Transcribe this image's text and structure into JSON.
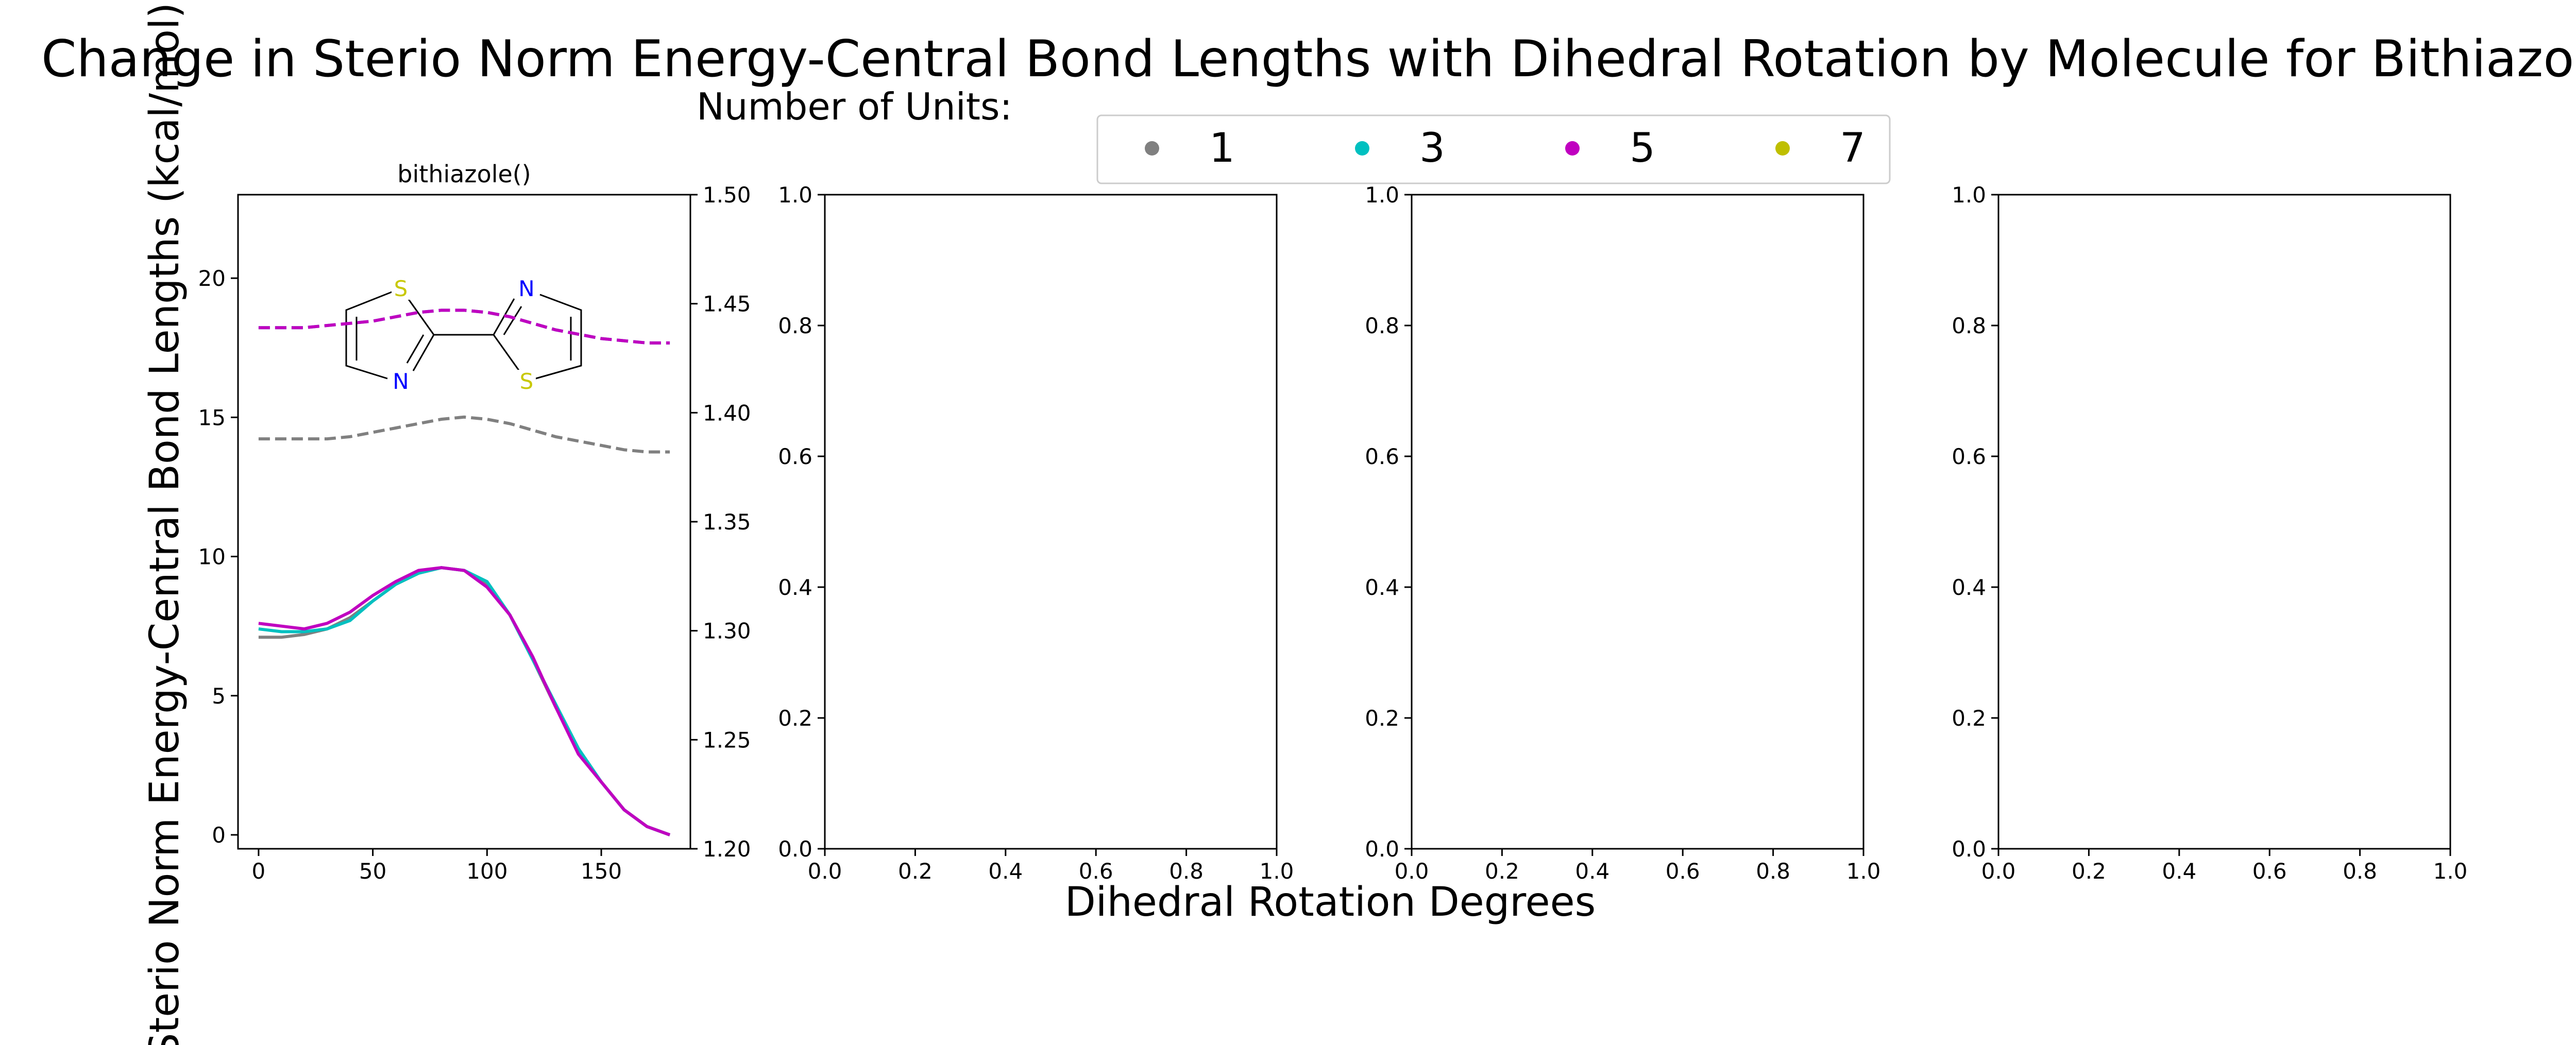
{
  "chart_data": {
    "type": "line",
    "title": "Change in Sterio Norm Energy-Central Bond Lengths with Dihedral Rotation by Molecule for Bithiazole",
    "xlabel": "Dihedral Rotation Degrees",
    "ylabel": "Sterio Norm Energy-Central Bond Lengths (kcal/mol)",
    "legend": {
      "title": "Number of Units:",
      "placement": "top-center",
      "entries": [
        {
          "label": "1",
          "color": "#808080"
        },
        {
          "label": "3",
          "color": "#00c0c0"
        },
        {
          "label": "5",
          "color": "#c000c0"
        },
        {
          "label": "7",
          "color": "#bfbf00"
        }
      ]
    },
    "panels": [
      {
        "title": "bithiazole()",
        "xlim": [
          -9,
          189
        ],
        "xticks": [
          "0",
          "50",
          "100",
          "150"
        ],
        "ylim": [
          -0.5,
          23
        ],
        "yticks": [
          "0",
          "5",
          "10",
          "15",
          "20"
        ],
        "y2lim": [
          1.2,
          1.5
        ],
        "y2ticks": [
          "1.20",
          "1.25",
          "1.30",
          "1.35",
          "1.40",
          "1.45",
          "1.50"
        ],
        "x": [
          0,
          10,
          20,
          30,
          40,
          50,
          60,
          70,
          80,
          90,
          100,
          110,
          120,
          130,
          140,
          150,
          160,
          170,
          180
        ],
        "energy_series": [
          {
            "name": "1",
            "color": "#808080",
            "values": [
              7.1,
              7.1,
              7.2,
              7.4,
              7.8,
              8.4,
              9.0,
              9.4,
              9.6,
              9.5,
              9.0,
              7.9,
              6.3,
              4.6,
              3.0,
              1.9,
              0.9,
              0.3,
              0.0
            ]
          },
          {
            "name": "3",
            "color": "#00c0c0",
            "values": [
              7.4,
              7.3,
              7.3,
              7.4,
              7.7,
              8.4,
              9.0,
              9.4,
              9.6,
              9.5,
              9.1,
              7.9,
              6.3,
              4.7,
              3.1,
              1.9,
              0.9,
              0.3,
              0.0
            ]
          },
          {
            "name": "5",
            "color": "#c000c0",
            "values": [
              7.6,
              7.5,
              7.4,
              7.6,
              8.0,
              8.6,
              9.1,
              9.5,
              9.6,
              9.5,
              8.9,
              7.9,
              6.4,
              4.6,
              2.9,
              1.9,
              0.9,
              0.3,
              0.0
            ]
          }
        ],
        "bond_series": [
          {
            "name": "1",
            "color": "#808080",
            "values": [
              1.388,
              1.388,
              1.388,
              1.388,
              1.389,
              1.391,
              1.393,
              1.395,
              1.397,
              1.398,
              1.397,
              1.395,
              1.392,
              1.389,
              1.387,
              1.385,
              1.383,
              1.382,
              1.382
            ]
          },
          {
            "name": "3",
            "color": "#00c0c0",
            "values": [
              1.439,
              1.439,
              1.439,
              1.44,
              1.441,
              1.442,
              1.444,
              1.446,
              1.447,
              1.447,
              1.446,
              1.444,
              1.441,
              1.438,
              1.436,
              1.434,
              1.433,
              1.432,
              1.432
            ]
          },
          {
            "name": "5",
            "color": "#c000c0",
            "values": [
              1.439,
              1.439,
              1.439,
              1.44,
              1.441,
              1.442,
              1.444,
              1.446,
              1.447,
              1.447,
              1.446,
              1.444,
              1.441,
              1.438,
              1.436,
              1.434,
              1.433,
              1.432,
              1.432
            ]
          }
        ],
        "molecule": {
          "atoms": [
            "S",
            "N",
            "N",
            "S"
          ]
        }
      },
      {
        "title": "",
        "xlim": [
          0,
          1
        ],
        "ylim": [
          0,
          1
        ],
        "xticks": [
          "0.0",
          "0.2",
          "0.4",
          "0.6",
          "0.8",
          "1.0"
        ],
        "yticks": [
          "0.0",
          "0.2",
          "0.4",
          "0.6",
          "0.8",
          "1.0"
        ]
      },
      {
        "title": "",
        "xlim": [
          0,
          1
        ],
        "ylim": [
          0,
          1
        ],
        "xticks": [
          "0.0",
          "0.2",
          "0.4",
          "0.6",
          "0.8",
          "1.0"
        ],
        "yticks": [
          "0.0",
          "0.2",
          "0.4",
          "0.6",
          "0.8",
          "1.0"
        ]
      },
      {
        "title": "",
        "xlim": [
          0,
          1
        ],
        "ylim": [
          0,
          1
        ],
        "xticks": [
          "0.0",
          "0.2",
          "0.4",
          "0.6",
          "0.8",
          "1.0"
        ],
        "yticks": [
          "0.0",
          "0.2",
          "0.4",
          "0.6",
          "0.8",
          "1.0"
        ]
      }
    ]
  }
}
